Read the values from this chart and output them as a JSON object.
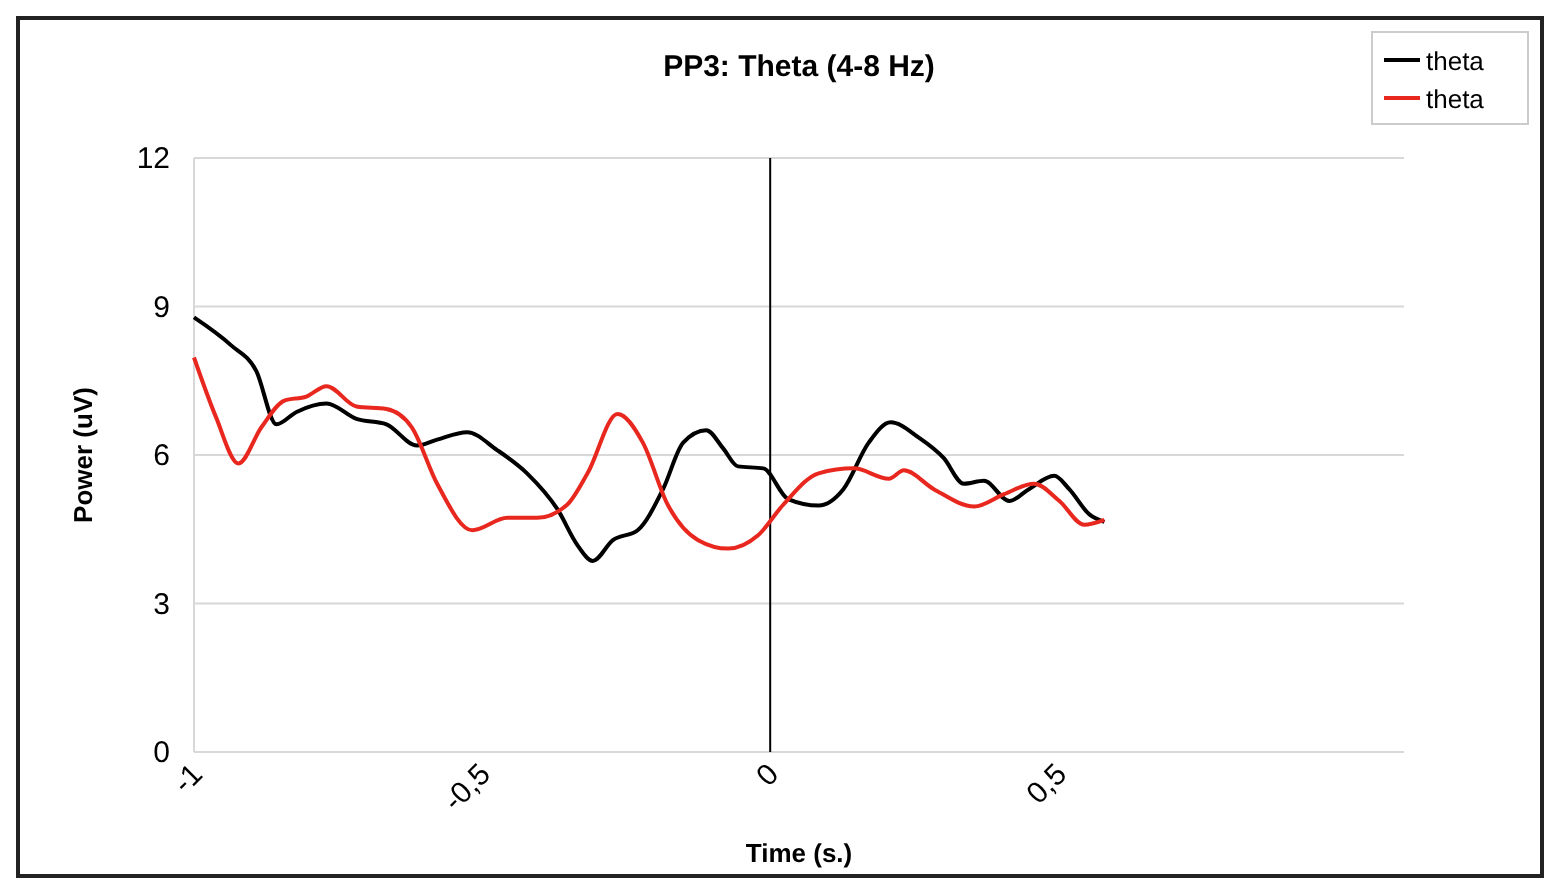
{
  "chart_data": {
    "type": "line",
    "title": "PP3: Theta (4-8 Hz)",
    "xlabel": "Time (s.)",
    "ylabel": "Power (uV)",
    "xlim": [
      -1,
      1.1
    ],
    "xticks": [
      {
        "value": -1,
        "label": "-1"
      },
      {
        "value": -0.5,
        "label": "-0,5"
      },
      {
        "value": 0,
        "label": "0"
      },
      {
        "value": 0.5,
        "label": "0,5"
      }
    ],
    "ylim": [
      0,
      12
    ],
    "yticks": [
      0,
      3,
      6,
      9,
      12
    ],
    "grid": "y",
    "legend": "top right",
    "line_style": "solid",
    "ref_lines": [
      {
        "axis": "x",
        "value": 0,
        "color": "#000000"
      }
    ],
    "series": [
      {
        "name": "theta",
        "color": "#000000",
        "x": [
          -1,
          -0.936,
          -0.892,
          -0.857,
          -0.822,
          -0.77,
          -0.718,
          -0.666,
          -0.613,
          -0.578,
          -0.526,
          -0.474,
          -0.422,
          -0.369,
          -0.334,
          -0.308,
          -0.273,
          -0.23,
          -0.186,
          -0.151,
          -0.111,
          -0.082,
          -0.056,
          -0.012,
          0.031,
          0.084,
          0.127,
          0.171,
          0.209,
          0.258,
          0.301,
          0.336,
          0.371,
          0.415,
          0.449,
          0.493,
          0.519,
          0.554,
          0.58
        ],
        "values": [
          8.78,
          8.22,
          7.7,
          6.62,
          6.87,
          7.04,
          6.73,
          6.62,
          6.19,
          6.31,
          6.46,
          6.1,
          5.63,
          4.9,
          4.17,
          3.86,
          4.28,
          4.48,
          5.31,
          6.25,
          6.5,
          6.14,
          5.77,
          5.73,
          5.11,
          4.98,
          5.31,
          6.25,
          6.66,
          6.35,
          5.94,
          5.42,
          5.48,
          5.07,
          5.31,
          5.58,
          5.31,
          4.8,
          4.65
        ]
      },
      {
        "name": "theta",
        "color": "#e8281e",
        "x": [
          -1,
          -0.962,
          -0.923,
          -0.883,
          -0.843,
          -0.805,
          -0.77,
          -0.718,
          -0.666,
          -0.622,
          -0.578,
          -0.517,
          -0.456,
          -0.404,
          -0.352,
          -0.317,
          -0.265,
          -0.221,
          -0.178,
          -0.125,
          -0.073,
          -0.021,
          0.023,
          0.084,
          0.145,
          0.206,
          0.232,
          0.284,
          0.354,
          0.406,
          0.458,
          0.502,
          0.545,
          0.58
        ],
        "values": [
          7.97,
          6.77,
          5.83,
          6.56,
          7.1,
          7.18,
          7.39,
          6.98,
          6.93,
          6.56,
          5.42,
          4.48,
          4.73,
          4.73,
          5.0,
          5.63,
          6.83,
          6.25,
          5.0,
          4.28,
          4.11,
          4.38,
          5.0,
          5.63,
          5.73,
          5.52,
          5.69,
          5.31,
          4.96,
          5.21,
          5.42,
          5.07,
          4.59,
          4.69
        ]
      }
    ]
  }
}
